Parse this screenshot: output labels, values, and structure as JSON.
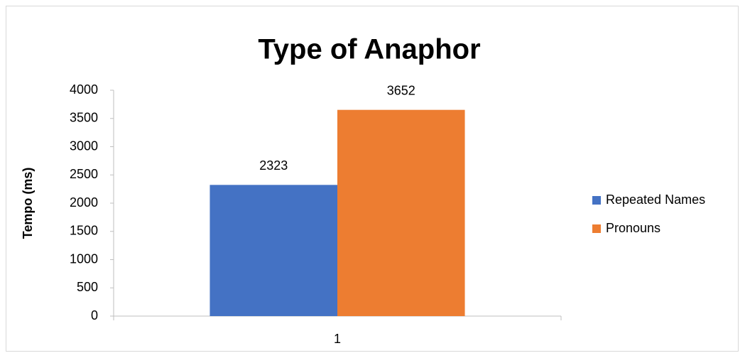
{
  "chart_data": {
    "type": "bar",
    "title": "Type of Anaphor",
    "y_label": "Tempo (ms)",
    "categories": [
      "1"
    ],
    "series": [
      {
        "name": "Repeated Names",
        "color": "#4472c4",
        "values": [
          2323
        ]
      },
      {
        "name": "Pronouns",
        "color": "#ed7d31",
        "values": [
          3652
        ]
      }
    ],
    "ylim": [
      0,
      4000
    ],
    "yticks": [
      0,
      500,
      1000,
      1500,
      2000,
      2500,
      3000,
      3500,
      4000
    ],
    "grid": false,
    "legend": "right"
  }
}
